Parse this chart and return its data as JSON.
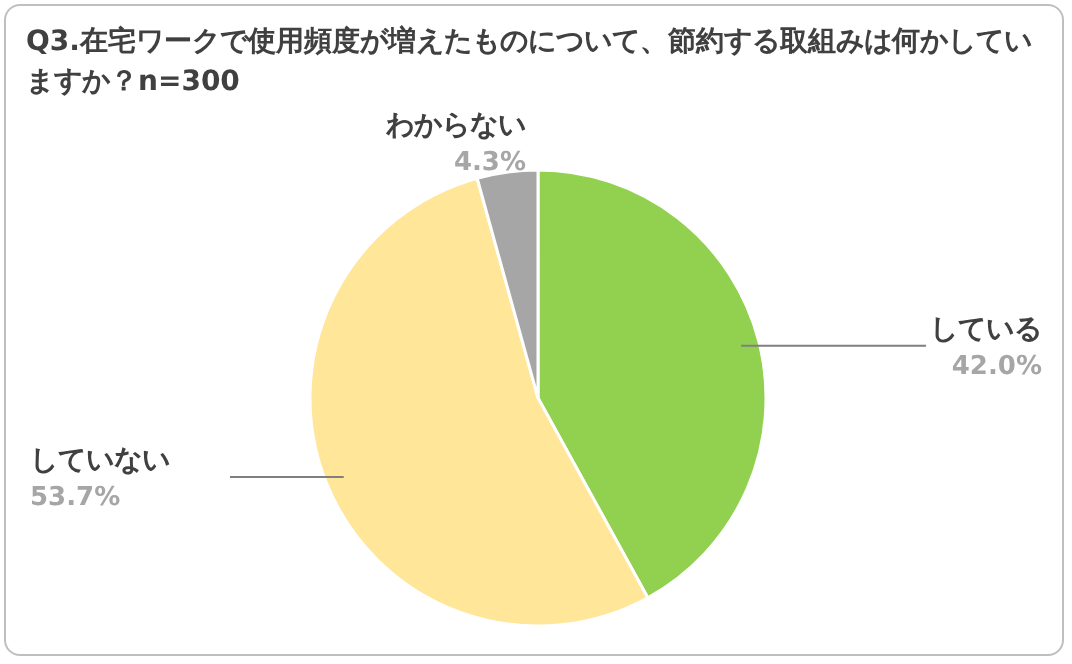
{
  "chart_data": {
    "type": "pie",
    "title": "Q3.在宅ワークで使用頻度が増えたものについて、節約する取組みは何かしていますか？n=300",
    "categories": [
      "している",
      "していない",
      "わからない"
    ],
    "values": [
      42.0,
      53.7,
      4.3
    ],
    "value_labels": [
      "42.0%",
      "53.7%",
      "4.3%"
    ],
    "colors": [
      "#92d050",
      "#ffe699",
      "#a6a6a6"
    ],
    "legend": false
  }
}
